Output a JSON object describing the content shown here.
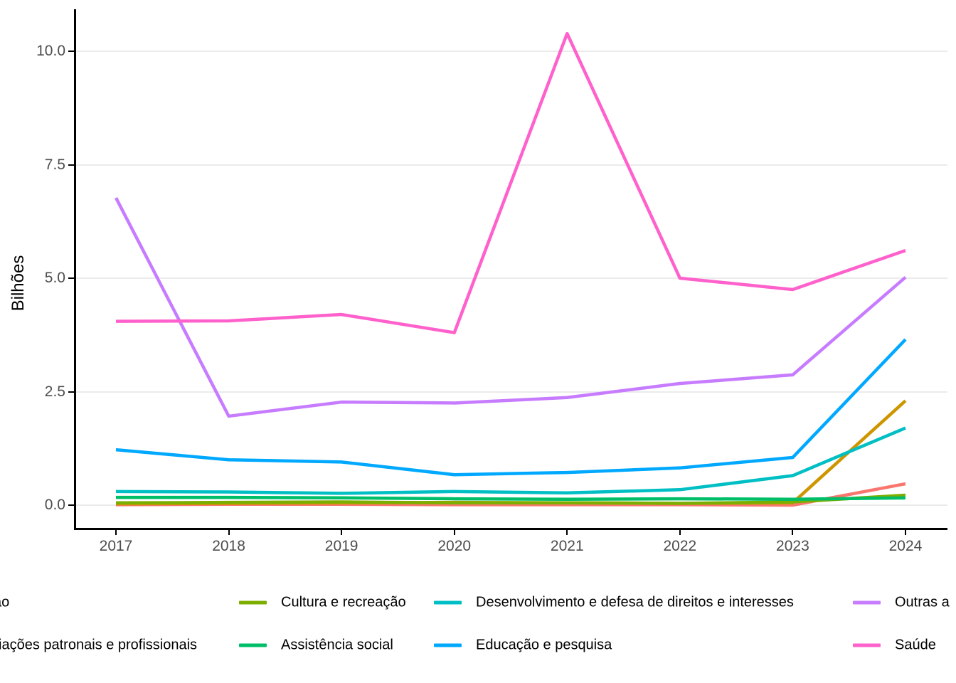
{
  "chart_data": {
    "type": "line",
    "title": "",
    "xlabel": "",
    "ylabel": "Bilhões",
    "x_tick_labels": [
      "2017",
      "2018",
      "2019",
      "2020",
      "2021",
      "2022",
      "2023",
      "2024"
    ],
    "y_tick_labels": [
      "0.0",
      "2.5",
      "5.0",
      "7.5",
      "10.0"
    ],
    "y_tick_values": [
      0,
      2.5,
      5,
      7.5,
      10
    ],
    "x_values": [
      2017,
      2018,
      2019,
      2020,
      2021,
      2022,
      2023,
      2024
    ],
    "ylim": [
      -0.5,
      10.9
    ],
    "grid": "horizontal-major-only",
    "legend_position": "bottom-2-rows-4-columns",
    "series": [
      {
        "name": "ão",
        "clipped": "left edge of image",
        "color": "#F8766D",
        "values": [
          0.01,
          0.02,
          0.02,
          0.01,
          0.01,
          0.01,
          0.0,
          0.47
        ],
        "legend": {
          "row": 1,
          "col": 1,
          "swatch_visible": false
        }
      },
      {
        "name": "iações patronais e profissionais",
        "clipped": "left edge of image",
        "color": "#CD9600",
        "values": [
          0.03,
          0.04,
          0.05,
          0.06,
          0.05,
          0.04,
          0.05,
          2.3
        ],
        "legend": {
          "row": 2,
          "col": 1,
          "swatch_visible": false
        }
      },
      {
        "name": "Cultura e recreação",
        "color": "#7CAE00",
        "values": [
          0.05,
          0.06,
          0.07,
          0.05,
          0.05,
          0.04,
          0.07,
          0.22
        ],
        "legend": {
          "row": 1,
          "col": 2,
          "swatch_visible": true
        }
      },
      {
        "name": "Assistência social",
        "color": "#00BE67",
        "values": [
          0.17,
          0.17,
          0.16,
          0.14,
          0.13,
          0.14,
          0.13,
          0.16
        ],
        "legend": {
          "row": 2,
          "col": 2,
          "swatch_visible": true
        }
      },
      {
        "name": "Desenvolvimento e defesa de direitos e interesses",
        "color": "#00BFC4",
        "values": [
          0.3,
          0.29,
          0.26,
          0.3,
          0.27,
          0.34,
          0.65,
          1.7
        ],
        "legend": {
          "row": 1,
          "col": 3,
          "swatch_visible": true
        }
      },
      {
        "name": "Educação e pesquisa",
        "color": "#00A9FF",
        "values": [
          1.22,
          1.0,
          0.95,
          0.67,
          0.72,
          0.82,
          1.05,
          3.65
        ],
        "legend": {
          "row": 2,
          "col": 3,
          "swatch_visible": true
        }
      },
      {
        "name": "Outras a",
        "clipped": "right edge of image",
        "color": "#C77CFF",
        "values": [
          6.77,
          1.96,
          2.27,
          2.25,
          2.37,
          2.68,
          2.87,
          5.02
        ],
        "legend": {
          "row": 1,
          "col": 4,
          "swatch_visible": true
        }
      },
      {
        "name": "Saúde",
        "color": "#FF61CC",
        "values": [
          4.05,
          4.06,
          4.2,
          3.8,
          10.39,
          5.0,
          4.75,
          5.61
        ],
        "legend": {
          "row": 2,
          "col": 4,
          "swatch_visible": true
        }
      }
    ]
  }
}
